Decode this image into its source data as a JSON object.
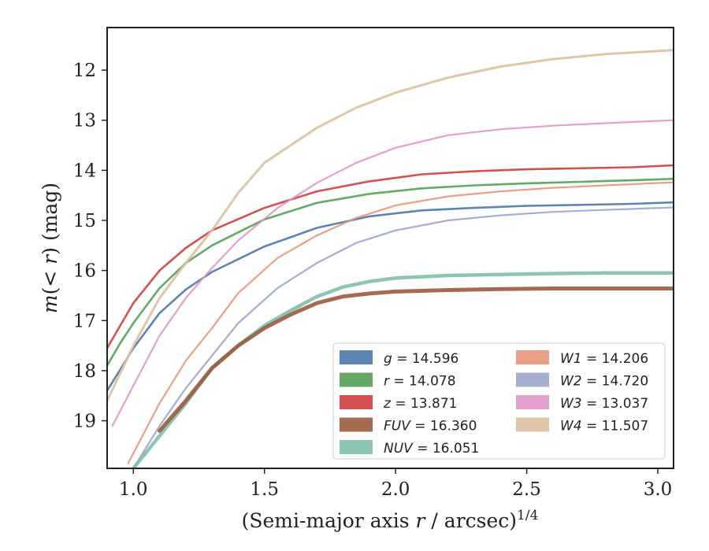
{
  "chart_data": {
    "type": "line",
    "xlabel": "(Semi-major axis r / arcsec)",
    "xlabel_italic": "r",
    "xlabel_superscript": "1/4",
    "ylabel": "m(< r) (mag)",
    "xlim": [
      0.9,
      3.06
    ],
    "ylim": [
      19.95,
      11.15
    ],
    "y_inverted": true,
    "xticks": [
      1.0,
      1.5,
      2.0,
      2.5,
      3.0
    ],
    "xtick_labels": [
      "1.0",
      "1.5",
      "2.0",
      "2.5",
      "3.0"
    ],
    "yticks": [
      12,
      13,
      14,
      15,
      16,
      17,
      18,
      19
    ],
    "ytick_labels": [
      "12",
      "13",
      "14",
      "15",
      "16",
      "17",
      "18",
      "19"
    ],
    "grid": false,
    "legend_position": "lower-right",
    "series": [
      {
        "name": "g = 14.596",
        "band": "g",
        "value": "14.596",
        "color": "#4c78a8",
        "width": 2.6,
        "x": [
          0.9,
          0.95,
          1.0,
          1.1,
          1.2,
          1.3,
          1.5,
          1.7,
          1.9,
          2.1,
          2.3,
          2.5,
          2.7,
          2.9,
          3.06
        ],
        "y": [
          18.4,
          17.98,
          17.55,
          16.85,
          16.38,
          16.03,
          15.52,
          15.15,
          14.92,
          14.8,
          14.75,
          14.71,
          14.69,
          14.67,
          14.64
        ]
      },
      {
        "name": "r = 14.078",
        "band": "r",
        "value": "14.078",
        "color": "#55a055",
        "width": 2.6,
        "x": [
          0.9,
          0.95,
          1.0,
          1.1,
          1.2,
          1.3,
          1.5,
          1.7,
          1.9,
          2.1,
          2.3,
          2.5,
          2.7,
          2.9,
          3.06
        ],
        "y": [
          17.9,
          17.45,
          17.05,
          16.35,
          15.85,
          15.5,
          14.98,
          14.65,
          14.47,
          14.36,
          14.3,
          14.26,
          14.23,
          14.2,
          14.17
        ]
      },
      {
        "name": "z = 13.871",
        "band": "z",
        "value": "13.871",
        "color": "#d03d3d",
        "width": 2.6,
        "x": [
          0.9,
          0.95,
          1.0,
          1.1,
          1.2,
          1.3,
          1.5,
          1.7,
          1.9,
          2.1,
          2.3,
          2.5,
          2.7,
          2.9,
          3.06
        ],
        "y": [
          17.55,
          17.1,
          16.65,
          16.0,
          15.55,
          15.2,
          14.75,
          14.42,
          14.22,
          14.08,
          14.02,
          13.98,
          13.96,
          13.94,
          13.9
        ]
      },
      {
        "name": "W1 = 14.206",
        "band": "W1",
        "value": "14.206",
        "color": "#e8967a",
        "width": 2.2,
        "x": [
          0.98,
          1.1,
          1.2,
          1.3,
          1.4,
          1.55,
          1.7,
          1.85,
          2.0,
          2.2,
          2.4,
          2.6,
          2.8,
          3.06
        ],
        "y": [
          19.85,
          18.65,
          17.8,
          17.15,
          16.45,
          15.75,
          15.3,
          14.95,
          14.7,
          14.52,
          14.42,
          14.35,
          14.3,
          14.24
        ]
      },
      {
        "name": "W2 = 14.720",
        "band": "W2",
        "value": "14.720",
        "color": "#9aa6cc",
        "width": 2.2,
        "x": [
          1.0,
          1.1,
          1.2,
          1.3,
          1.4,
          1.55,
          1.7,
          1.85,
          2.0,
          2.2,
          2.4,
          2.6,
          2.8,
          3.06
        ],
        "y": [
          19.95,
          19.1,
          18.35,
          17.7,
          17.05,
          16.35,
          15.85,
          15.45,
          15.2,
          15.0,
          14.9,
          14.83,
          14.79,
          14.74
        ]
      },
      {
        "name": "W3 = 13.037",
        "band": "W3",
        "value": "13.037",
        "color": "#df96c8",
        "width": 2.2,
        "x": [
          0.92,
          1.0,
          1.1,
          1.2,
          1.3,
          1.4,
          1.55,
          1.7,
          1.85,
          2.0,
          2.2,
          2.4,
          2.6,
          2.8,
          3.06
        ],
        "y": [
          19.1,
          18.3,
          17.3,
          16.55,
          15.95,
          15.4,
          14.75,
          14.25,
          13.85,
          13.55,
          13.3,
          13.18,
          13.11,
          13.06,
          13.0
        ]
      },
      {
        "name": "W4 = 11.507",
        "band": "W4",
        "value": "11.507",
        "color": "#dcc09e",
        "width": 3.0,
        "x": [
          0.9,
          1.0,
          1.1,
          1.2,
          1.3,
          1.4,
          1.5,
          1.7,
          1.85,
          2.0,
          2.2,
          2.4,
          2.6,
          2.8,
          3.06
        ],
        "y": [
          18.6,
          17.5,
          16.55,
          15.85,
          15.2,
          14.45,
          13.85,
          13.15,
          12.75,
          12.45,
          12.15,
          11.93,
          11.78,
          11.68,
          11.6
        ]
      },
      {
        "name": "NUV = 16.051",
        "band": "NUV",
        "value": "16.051",
        "color": "#7fbfab",
        "width": 4.5,
        "x": [
          1.0,
          1.1,
          1.2,
          1.3,
          1.4,
          1.5,
          1.6,
          1.7,
          1.8,
          1.9,
          2.0,
          2.2,
          2.4,
          2.6,
          2.8,
          3.06
        ],
        "y": [
          19.95,
          19.3,
          18.65,
          17.95,
          17.5,
          17.1,
          16.8,
          16.52,
          16.33,
          16.22,
          16.15,
          16.1,
          16.08,
          16.06,
          16.05,
          16.05
        ]
      },
      {
        "name": "FUV = 16.360",
        "band": "FUV",
        "value": "16.360",
        "color": "#9b5b3d",
        "width": 5.0,
        "x": [
          1.1,
          1.2,
          1.3,
          1.4,
          1.5,
          1.6,
          1.7,
          1.8,
          1.9,
          2.0,
          2.2,
          2.4,
          2.6,
          2.8,
          3.06
        ],
        "y": [
          19.2,
          18.6,
          17.95,
          17.5,
          17.15,
          16.88,
          16.65,
          16.52,
          16.46,
          16.42,
          16.39,
          16.37,
          16.36,
          16.36,
          16.36
        ]
      }
    ],
    "legend": [
      {
        "band": "g",
        "value": "14.596",
        "color": "#4c78a8"
      },
      {
        "band": "r",
        "value": "14.078",
        "color": "#55a055"
      },
      {
        "band": "z",
        "value": "13.871",
        "color": "#d03d3d"
      },
      {
        "band": "FUV",
        "value": "16.360",
        "color": "#9b5b3d"
      },
      {
        "band": "NUV",
        "value": "16.051",
        "color": "#7fbfab"
      },
      {
        "band": "W1",
        "value": "14.206",
        "color": "#e8967a"
      },
      {
        "band": "W2",
        "value": "14.720",
        "color": "#9aa6cc"
      },
      {
        "band": "W3",
        "value": "13.037",
        "color": "#df96c8"
      },
      {
        "band": "W4",
        "value": "11.507",
        "color": "#dcc09e"
      }
    ]
  }
}
